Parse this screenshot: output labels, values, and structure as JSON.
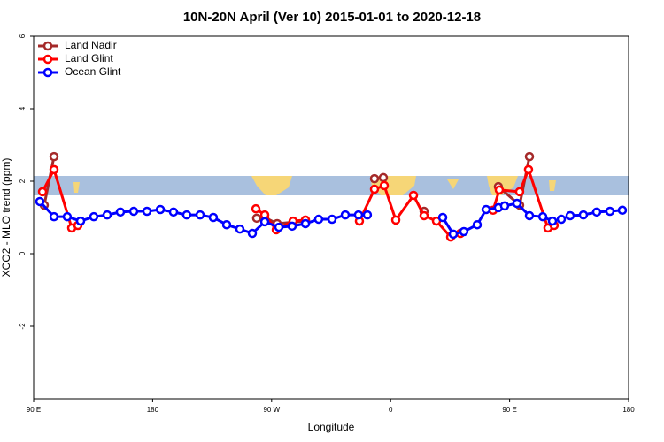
{
  "chart_data": {
    "type": "line",
    "title": "10N-20N April (Ver 10)   2015-01-01 to 2020-12-18",
    "x_label": "Longitude",
    "y_label": "XCO2 - MLO trend (ppm)",
    "xlim": [
      90,
      540
    ],
    "ylim": [
      -4,
      6
    ],
    "xticks": [
      {
        "value": 90,
        "label": "90 E"
      },
      {
        "value": 180,
        "label": "180"
      },
      {
        "value": 270,
        "label": "90 W"
      },
      {
        "value": 360,
        "label": "0"
      },
      {
        "value": 450,
        "label": "90 E"
      },
      {
        "value": 540,
        "label": "180"
      }
    ],
    "yticks": [
      -2,
      0,
      2,
      4,
      6
    ],
    "legend": "top-left",
    "series": [
      {
        "name": "Land Nadir",
        "color": "#a52a2a",
        "x": [
          98,
          105.4,
          null,
          258.7,
          264.8,
          274.2,
          295.6,
          null,
          347.8,
          354.5,
          null,
          385.3,
          null,
          441.5,
          457.6,
          465
        ],
        "values": [
          1.34,
          2.68,
          null,
          0.98,
          1.0,
          0.83,
          0.9,
          null,
          2.07,
          2.1,
          null,
          1.17,
          null,
          1.85,
          1.34,
          2.68
        ]
      },
      {
        "name": "Land Glint",
        "color": "#ff0000",
        "x": [
          96.7,
          105.4,
          118.8,
          123.5,
          null,
          258.1,
          264.8,
          273.5,
          286.2,
          295.6,
          null,
          336.4,
          347.8,
          355.2,
          363.9,
          377.3,
          385.3,
          394.7,
          405.4,
          412.8,
          null,
          437.5,
          442.2,
          457.6,
          464.3,
          479,
          483.7
        ],
        "values": [
          1.71,
          2.32,
          0.71,
          0.78,
          null,
          1.24,
          1.07,
          0.66,
          0.9,
          0.93,
          null,
          0.9,
          1.78,
          1.88,
          0.93,
          1.61,
          1.05,
          0.9,
          0.46,
          0.56,
          null,
          1.2,
          1.76,
          1.71,
          2.32,
          0.71,
          0.78
        ]
      },
      {
        "name": "Ocean Glint",
        "color": "#0000ff",
        "x": [
          94.7,
          105.4,
          115.4,
          125.5,
          135.5,
          145.6,
          155.6,
          165.7,
          175.7,
          185.8,
          195.8,
          205.8,
          215.9,
          225.9,
          236,
          246,
          255.4,
          264.8,
          275.5,
          285.5,
          295.6,
          305.6,
          315.7,
          325.7,
          335.7,
          342.4,
          null,
          399.4,
          407.4,
          415.4,
          425.5,
          432.2,
          441.5,
          446.2,
          455.6,
          465,
          475.1,
          482.4,
          489.1,
          495.8,
          505.8,
          515.9,
          525.9,
          535.3
        ],
        "values": [
          1.44,
          1.02,
          1.02,
          0.9,
          1.02,
          1.07,
          1.15,
          1.17,
          1.17,
          1.22,
          1.15,
          1.07,
          1.07,
          1.0,
          0.8,
          0.68,
          0.56,
          0.88,
          0.73,
          0.76,
          0.83,
          0.95,
          0.95,
          1.07,
          1.07,
          1.07,
          null,
          1.0,
          0.54,
          0.61,
          0.8,
          1.22,
          1.27,
          1.32,
          1.39,
          1.05,
          1.02,
          0.9,
          0.95,
          1.05,
          1.07,
          1.15,
          1.17,
          1.2
        ]
      }
    ]
  }
}
